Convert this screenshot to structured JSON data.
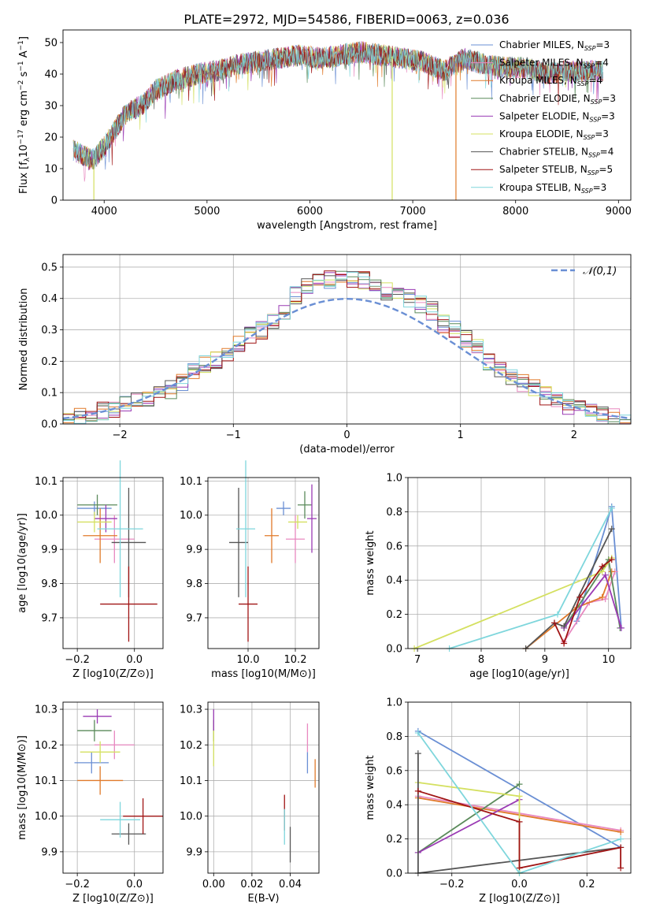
{
  "figure": {
    "title": "PLATE=2972, MJD=54586, FIBERID=0063, z=0.036",
    "colors": {
      "Chabrier MILES": "#6a8fd4",
      "Salpeter MILES": "#e888c0",
      "Kroupa MILES": "#e07a2a",
      "Chabrier ELODIE": "#5a8a5a",
      "Salpeter ELODIE": "#9a3ab4",
      "Kroupa ELODIE": "#d4e060",
      "Chabrier STELIB": "#555555",
      "Salpeter STELIB": "#a01414",
      "Kroupa STELIB": "#7ed6dc"
    }
  },
  "chart_data": [
    {
      "id": "spectrum",
      "type": "line",
      "xlabel": "wavelength [Angstrom, rest frame]",
      "ylabel": "Flux [f_λ10^-17 erg cm^-2 s^-1 A^-1]",
      "xlim": [
        3600,
        9120
      ],
      "ylim": [
        0,
        54
      ],
      "xticks": [
        4000,
        5000,
        6000,
        7000,
        8000,
        9000
      ],
      "yticks": [
        0,
        10,
        20,
        30,
        40,
        50
      ],
      "continuum_x": [
        3700,
        3800,
        3900,
        4000,
        4100,
        4200,
        4300,
        4400,
        4500,
        4700,
        4900,
        5100,
        5300,
        5500,
        5700,
        5900,
        6100,
        6300,
        6500,
        6700,
        6900,
        7100,
        7300,
        7500,
        7700,
        7900,
        8100,
        8300,
        8500,
        8700,
        8850
      ],
      "continuum_y": [
        16,
        14,
        13,
        17,
        22,
        27,
        29,
        31,
        35,
        38,
        40,
        41,
        43,
        44,
        45,
        46,
        45,
        46,
        47,
        46,
        45,
        44,
        41,
        45,
        43,
        42,
        42,
        40,
        41,
        41,
        41
      ],
      "dropouts": [
        {
          "series": "Kroupa ELODIE",
          "x": 3900,
          "y": 0
        },
        {
          "series": "Kroupa ELODIE",
          "x": 6800,
          "y": 0
        },
        {
          "series": "Kroupa MILES",
          "x": 7420,
          "y": 0
        }
      ],
      "legend": [
        {
          "name": "Chabrier MILES",
          "n": "3"
        },
        {
          "name": "Salpeter MILES",
          "n": "4"
        },
        {
          "name": "Kroupa MILES",
          "n": "4"
        },
        {
          "name": "Chabrier ELODIE",
          "n": "3"
        },
        {
          "name": "Salpeter ELODIE",
          "n": "3"
        },
        {
          "name": "Kroupa ELODIE",
          "n": "3"
        },
        {
          "name": "Chabrier STELIB",
          "n": "4"
        },
        {
          "name": "Salpeter STELIB",
          "n": "5"
        },
        {
          "name": "Kroupa STELIB",
          "n": "3"
        }
      ],
      "legend_placement": "top-right"
    },
    {
      "id": "residuals",
      "type": "histogram",
      "xlabel": "(data-model)/error",
      "ylabel": "Normed distribution",
      "xlim": [
        -2.5,
        2.5
      ],
      "ylim": [
        0,
        0.54
      ],
      "xticks": [
        -2,
        -1,
        0,
        1,
        2
      ],
      "yticks": [
        0.0,
        0.1,
        0.2,
        0.3,
        0.4,
        0.5
      ],
      "grid": true,
      "bin_edges": [
        -2.5,
        -2.4,
        -2.3,
        -2.2,
        -2.1,
        -2.0,
        -1.9,
        -1.8,
        -1.7,
        -1.6,
        -1.5,
        -1.4,
        -1.3,
        -1.2,
        -1.1,
        -1.0,
        -0.9,
        -0.8,
        -0.7,
        -0.6,
        -0.5,
        -0.4,
        -0.3,
        -0.2,
        -0.1,
        0.0,
        0.1,
        0.2,
        0.3,
        0.4,
        0.5,
        0.6,
        0.7,
        0.8,
        0.9,
        1.0,
        1.1,
        1.2,
        1.3,
        1.4,
        1.5,
        1.6,
        1.7,
        1.8,
        1.9,
        2.0,
        2.1,
        2.2,
        2.3,
        2.4,
        2.5
      ],
      "base_density": [
        0.01,
        0.02,
        0.03,
        0.04,
        0.05,
        0.06,
        0.07,
        0.08,
        0.1,
        0.11,
        0.13,
        0.17,
        0.19,
        0.2,
        0.23,
        0.25,
        0.28,
        0.3,
        0.32,
        0.36,
        0.41,
        0.44,
        0.45,
        0.46,
        0.47,
        0.46,
        0.46,
        0.44,
        0.42,
        0.41,
        0.4,
        0.38,
        0.36,
        0.32,
        0.3,
        0.27,
        0.24,
        0.2,
        0.18,
        0.15,
        0.13,
        0.12,
        0.09,
        0.08,
        0.06,
        0.05,
        0.04,
        0.03,
        0.02,
        0.01
      ],
      "reference": {
        "name": "𝒩(0,1)",
        "mean": 0,
        "sigma": 1
      },
      "legend_placement": "top-right"
    },
    {
      "id": "age-vs-Z",
      "type": "scatter",
      "xlabel": "Z [log10(Z/Z⊙)]",
      "ylabel": "age [log10(age/yr)]",
      "xlim": [
        -0.25,
        0.1
      ],
      "ylim": [
        9.61,
        10.11
      ],
      "xticks": [
        -0.2,
        0.0
      ],
      "yticks": [
        9.7,
        9.8,
        9.9,
        10.0,
        10.1
      ],
      "points": [
        {
          "series": "Chabrier MILES",
          "x": -0.14,
          "y": 10.02,
          "xerr": 0.06,
          "yerr": 0.02
        },
        {
          "series": "Salpeter MILES",
          "x": -0.07,
          "y": 9.93,
          "xerr": 0.07,
          "yerr": 0.07
        },
        {
          "series": "Kroupa MILES",
          "x": -0.12,
          "y": 9.94,
          "xerr": 0.06,
          "yerr": 0.08
        },
        {
          "series": "Chabrier ELODIE",
          "x": -0.13,
          "y": 10.03,
          "xerr": 0.07,
          "yerr": 0.03
        },
        {
          "series": "Salpeter ELODIE",
          "x": -0.1,
          "y": 9.99,
          "xerr": 0.04,
          "yerr": 0.04
        },
        {
          "series": "Kroupa ELODIE",
          "x": -0.14,
          "y": 9.98,
          "xerr": 0.06,
          "yerr": 0.03
        },
        {
          "series": "Chabrier STELIB",
          "x": -0.02,
          "y": 9.92,
          "xerr": 0.06,
          "yerr": 0.16
        },
        {
          "series": "Salpeter STELIB",
          "x": -0.02,
          "y": 9.74,
          "xerr": 0.1,
          "yerr": 0.11
        },
        {
          "series": "Kroupa STELIB",
          "x": -0.05,
          "y": 9.96,
          "xerr": 0.08,
          "yerr": 0.2
        }
      ]
    },
    {
      "id": "age-vs-mass",
      "type": "scatter",
      "xlabel": "mass [log10(M/M⊙)]",
      "ylabel": "",
      "xlim": [
        9.83,
        10.3
      ],
      "ylim": [
        9.61,
        10.11
      ],
      "xticks": [
        10.0,
        10.2
      ],
      "yticks": [
        9.7,
        9.8,
        9.9,
        10.0,
        10.1
      ],
      "points": [
        {
          "series": "Chabrier MILES",
          "x": 10.15,
          "y": 10.02,
          "xerr": 0.03,
          "yerr": 0.02
        },
        {
          "series": "Salpeter MILES",
          "x": 10.2,
          "y": 9.93,
          "xerr": 0.04,
          "yerr": 0.07
        },
        {
          "series": "Kroupa MILES",
          "x": 10.1,
          "y": 9.94,
          "xerr": 0.03,
          "yerr": 0.08
        },
        {
          "series": "Chabrier ELODIE",
          "x": 10.24,
          "y": 10.03,
          "xerr": 0.03,
          "yerr": 0.04
        },
        {
          "series": "Salpeter ELODIE",
          "x": 10.27,
          "y": 9.99,
          "xerr": 0.02,
          "yerr": 0.1
        },
        {
          "series": "Kroupa ELODIE",
          "x": 10.21,
          "y": 9.98,
          "xerr": 0.04,
          "yerr": 0.02
        },
        {
          "series": "Chabrier STELIB",
          "x": 9.96,
          "y": 9.92,
          "xerr": 0.04,
          "yerr": 0.16
        },
        {
          "series": "Salpeter STELIB",
          "x": 10.0,
          "y": 9.74,
          "xerr": 0.04,
          "yerr": 0.11
        },
        {
          "series": "Kroupa STELIB",
          "x": 9.99,
          "y": 9.96,
          "xerr": 0.04,
          "yerr": 0.2
        }
      ]
    },
    {
      "id": "weight-vs-age",
      "type": "line",
      "xlabel": "age [log10(age/yr)]",
      "ylabel": "mass weight",
      "xlim": [
        6.85,
        10.35
      ],
      "ylim": [
        0,
        1
      ],
      "xticks": [
        7,
        8,
        9,
        10
      ],
      "yticks": [
        0.0,
        0.2,
        0.4,
        0.6,
        0.8,
        1.0
      ],
      "series": [
        {
          "name": "Chabrier MILES",
          "x": [
            9.5,
            10.05,
            10.2
          ],
          "y": [
            0.16,
            0.83,
            0.12
          ]
        },
        {
          "name": "Salpeter MILES",
          "x": [
            9.3,
            9.7,
            9.95,
            10.1
          ],
          "y": [
            0.04,
            0.27,
            0.29,
            0.45
          ]
        },
        {
          "name": "Kroupa MILES",
          "x": [
            8.7,
            9.5,
            9.9,
            10.05
          ],
          "y": [
            0.0,
            0.24,
            0.3,
            0.45
          ]
        },
        {
          "name": "Chabrier ELODIE",
          "x": [
            9.3,
            10.0,
            10.18
          ],
          "y": [
            0.12,
            0.52,
            0.12
          ]
        },
        {
          "name": "Salpeter ELODIE",
          "x": [
            9.3,
            9.95,
            10.2
          ],
          "y": [
            0.12,
            0.43,
            0.12
          ]
        },
        {
          "name": "Kroupa ELODIE",
          "x": [
            6.95,
            9.9,
            10.05
          ],
          "y": [
            0.0,
            0.45,
            0.53
          ]
        },
        {
          "name": "Chabrier STELIB",
          "x": [
            8.7,
            9.15,
            9.3,
            10.05
          ],
          "y": [
            0.0,
            0.15,
            0.13,
            0.7
          ]
        },
        {
          "name": "Salpeter STELIB",
          "x": [
            9.15,
            9.3,
            9.55,
            9.9,
            10.05
          ],
          "y": [
            0.15,
            0.03,
            0.3,
            0.48,
            0.52
          ]
        },
        {
          "name": "Kroupa STELIB",
          "x": [
            7.5,
            9.2,
            10.05
          ],
          "y": [
            0.0,
            0.2,
            0.82
          ]
        }
      ]
    },
    {
      "id": "mass-vs-Z",
      "type": "scatter",
      "xlabel": "Z [log10(Z/Z⊙)]",
      "ylabel": "mass [log10(M/M⊙)]",
      "xlim": [
        -0.25,
        0.1
      ],
      "ylim": [
        9.84,
        10.32
      ],
      "xticks": [
        -0.2,
        0.0
      ],
      "yticks": [
        9.9,
        10.0,
        10.1,
        10.2,
        10.3
      ],
      "points": [
        {
          "series": "Chabrier MILES",
          "x": -0.15,
          "y": 10.15,
          "xerr": 0.06,
          "yerr": 0.03
        },
        {
          "series": "Salpeter MILES",
          "x": -0.07,
          "y": 10.2,
          "xerr": 0.07,
          "yerr": 0.04
        },
        {
          "series": "Kroupa MILES",
          "x": -0.12,
          "y": 10.1,
          "xerr": 0.08,
          "yerr": 0.04
        },
        {
          "series": "Chabrier ELODIE",
          "x": -0.14,
          "y": 10.24,
          "xerr": 0.06,
          "yerr": 0.03
        },
        {
          "series": "Salpeter ELODIE",
          "x": -0.13,
          "y": 10.28,
          "xerr": 0.05,
          "yerr": 0.02
        },
        {
          "series": "Kroupa ELODIE",
          "x": -0.12,
          "y": 10.18,
          "xerr": 0.07,
          "yerr": 0.03
        },
        {
          "series": "Chabrier STELIB",
          "x": -0.02,
          "y": 9.95,
          "xerr": 0.06,
          "yerr": 0.03
        },
        {
          "series": "Salpeter STELIB",
          "x": 0.03,
          "y": 10.0,
          "xerr": 0.07,
          "yerr": 0.05
        },
        {
          "series": "Kroupa STELIB",
          "x": -0.05,
          "y": 9.99,
          "xerr": 0.07,
          "yerr": 0.05
        }
      ]
    },
    {
      "id": "mass-vs-ebv",
      "type": "scatter",
      "xlabel": "E(B-V)",
      "ylabel": "",
      "xlim": [
        -0.003,
        0.055
      ],
      "ylim": [
        9.84,
        10.32
      ],
      "xticks": [
        0.0,
        0.02,
        0.04
      ],
      "yticks": [
        9.9,
        10.0,
        10.1,
        10.2,
        10.3
      ],
      "points": [
        {
          "series": "Chabrier MILES",
          "x": 0.049,
          "y": 10.15,
          "xerr": 0.0,
          "yerr": 0.03
        },
        {
          "series": "Salpeter MILES",
          "x": 0.049,
          "y": 10.22,
          "xerr": 0.0,
          "yerr": 0.04
        },
        {
          "series": "Kroupa MILES",
          "x": 0.053,
          "y": 10.12,
          "xerr": 0.0,
          "yerr": 0.04
        },
        {
          "series": "Chabrier ELODIE",
          "x": 0.0,
          "y": 10.24,
          "xerr": 0.0,
          "yerr": 0.03
        },
        {
          "series": "Salpeter ELODIE",
          "x": 0.0,
          "y": 10.27,
          "xerr": 0.0,
          "yerr": 0.03
        },
        {
          "series": "Kroupa ELODIE",
          "x": 0.0,
          "y": 10.19,
          "xerr": 0.0,
          "yerr": 0.05
        },
        {
          "series": "Chabrier STELIB",
          "x": 0.04,
          "y": 9.92,
          "xerr": 0.0,
          "yerr": 0.05
        },
        {
          "series": "Salpeter STELIB",
          "x": 0.037,
          "y": 10.01,
          "xerr": 0.0,
          "yerr": 0.05
        },
        {
          "series": "Kroupa STELIB",
          "x": 0.037,
          "y": 9.97,
          "xerr": 0.0,
          "yerr": 0.05
        }
      ]
    },
    {
      "id": "weight-vs-Z",
      "type": "line",
      "xlabel": "Z [log10(Z/Z⊙)]",
      "ylabel": "mass weight",
      "xlim": [
        -0.33,
        0.33
      ],
      "ylim": [
        0,
        1
      ],
      "xticks": [
        -0.2,
        0.0,
        0.2
      ],
      "yticks": [
        0.0,
        0.2,
        0.4,
        0.6,
        0.8,
        1.0
      ],
      "series": [
        {
          "name": "Chabrier MILES",
          "x": [
            -0.3,
            0.3
          ],
          "y": [
            0.83,
            0.15
          ]
        },
        {
          "name": "Salpeter MILES",
          "x": [
            -0.3,
            0.3
          ],
          "y": [
            0.45,
            0.25
          ]
        },
        {
          "name": "Kroupa MILES",
          "x": [
            -0.3,
            0.3
          ],
          "y": [
            0.44,
            0.24
          ]
        },
        {
          "name": "Chabrier ELODIE",
          "x": [
            -0.3,
            0.0
          ],
          "y": [
            0.12,
            0.52
          ]
        },
        {
          "name": "Salpeter ELODIE",
          "x": [
            -0.3,
            0.0
          ],
          "y": [
            0.12,
            0.43
          ]
        },
        {
          "name": "Kroupa ELODIE",
          "x": [
            -0.3,
            0.0,
            0.0
          ],
          "y": [
            0.53,
            0.45,
            0.0
          ]
        },
        {
          "name": "Chabrier STELIB",
          "x": [
            -0.3,
            -0.3,
            0.3
          ],
          "y": [
            0.7,
            0.0,
            0.15
          ]
        },
        {
          "name": "Salpeter STELIB",
          "x": [
            -0.3,
            0.0,
            0.0,
            0.3,
            0.3
          ],
          "y": [
            0.48,
            0.3,
            0.03,
            0.15,
            0.03
          ]
        },
        {
          "name": "Kroupa STELIB",
          "x": [
            -0.3,
            0.0,
            0.3
          ],
          "y": [
            0.82,
            0.0,
            0.2
          ]
        }
      ]
    }
  ]
}
